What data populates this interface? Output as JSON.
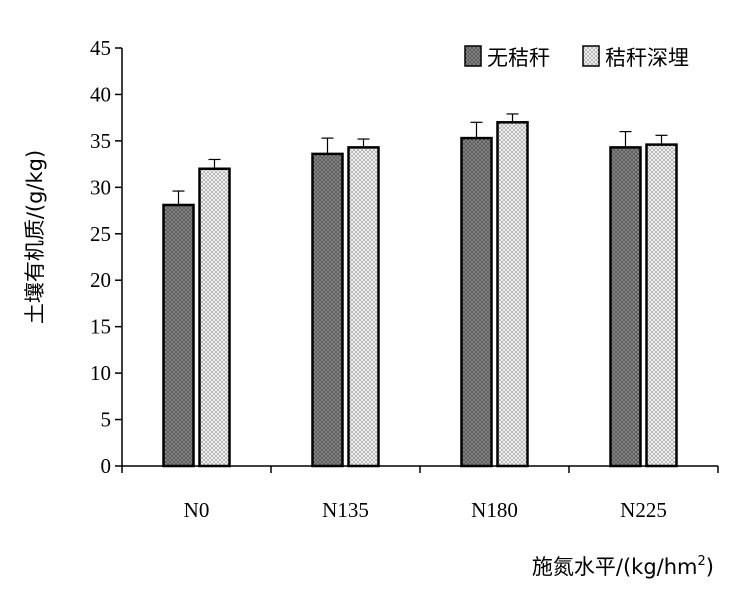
{
  "chart_data": {
    "type": "bar",
    "categories": [
      "N0",
      "N135",
      "N180",
      "N225"
    ],
    "series": [
      {
        "name": "无秸秆",
        "values": [
          28.1,
          33.6,
          35.3,
          34.3
        ],
        "errors": [
          1.5,
          1.7,
          1.7,
          1.7
        ],
        "color": "#888888"
      },
      {
        "name": "秸秆深埋",
        "values": [
          32.0,
          34.3,
          37.0,
          34.6
        ],
        "errors": [
          1.0,
          0.9,
          0.9,
          1.0
        ],
        "color": "#e6e6e6"
      }
    ],
    "ylim": [
      0,
      45
    ],
    "yticks": [
      "0",
      "5",
      "10",
      "15",
      "20",
      "25",
      "30",
      "35",
      "40",
      "45"
    ],
    "ylabel": "土壤有机质/(g/kg)",
    "xlabel": "施氮水平/(kg/hm2)",
    "xlabel_main": "施氮水平/(kg/hm",
    "xlabel_sup": "2",
    "xlabel_end": ")",
    "legend_position": "top-right",
    "grid": false
  }
}
